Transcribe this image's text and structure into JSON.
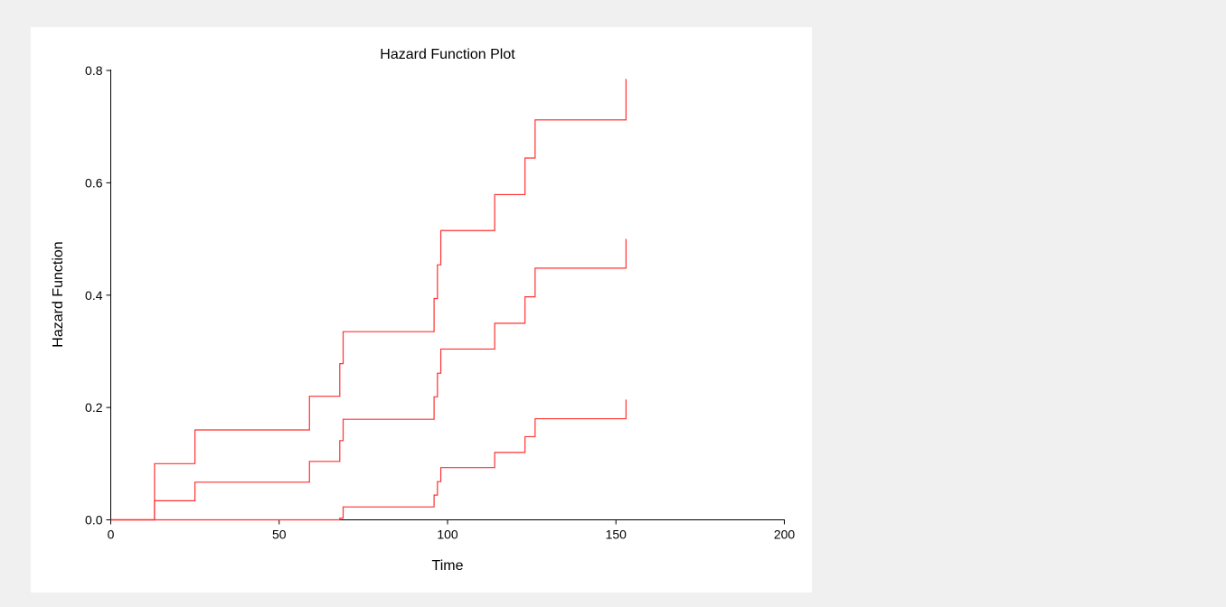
{
  "chart_data": {
    "type": "line",
    "step": true,
    "title": "Hazard Function Plot",
    "xlabel": "Time",
    "ylabel": "Hazard Function",
    "xlim": [
      0,
      200
    ],
    "ylim": [
      0,
      0.8
    ],
    "xticks": [
      0,
      50,
      100,
      150,
      200
    ],
    "yticks": [
      0.0,
      0.2,
      0.4,
      0.6,
      0.8
    ],
    "xtick_labels": [
      "0",
      "50",
      "100",
      "150",
      "200"
    ],
    "ytick_labels": [
      "0.0",
      "0.2",
      "0.4",
      "0.6",
      "0.8"
    ],
    "grid": false,
    "legend": "none",
    "line_color": "#ff3030",
    "series": [
      {
        "x": [
          0,
          13,
          13,
          25,
          25,
          59,
          59,
          68,
          68,
          69,
          69,
          96,
          96,
          97,
          97,
          98,
          98,
          114,
          114,
          123,
          123,
          126,
          126,
          153,
          153
        ],
        "y": [
          0,
          0,
          0.1,
          0.1,
          0.16,
          0.16,
          0.22,
          0.22,
          0.278,
          0.278,
          0.335,
          0.335,
          0.394,
          0.394,
          0.454,
          0.454,
          0.515,
          0.515,
          0.579,
          0.579,
          0.644,
          0.644,
          0.712,
          0.712,
          0.785
        ]
      },
      {
        "x": [
          0,
          13,
          13,
          25,
          25,
          59,
          59,
          68,
          68,
          69,
          69,
          96,
          96,
          97,
          97,
          98,
          98,
          114,
          114,
          123,
          123,
          126,
          126,
          153,
          153
        ],
        "y": [
          0,
          0,
          0.034,
          0.034,
          0.067,
          0.067,
          0.104,
          0.104,
          0.141,
          0.141,
          0.179,
          0.179,
          0.219,
          0.219,
          0.261,
          0.261,
          0.304,
          0.304,
          0.35,
          0.35,
          0.397,
          0.397,
          0.448,
          0.448,
          0.5
        ]
      },
      {
        "x": [
          0,
          68,
          68,
          69,
          69,
          96,
          96,
          97,
          97,
          98,
          98,
          114,
          114,
          123,
          123,
          126,
          126,
          153,
          153
        ],
        "y": [
          0,
          0,
          0.003,
          0.003,
          0.023,
          0.023,
          0.044,
          0.044,
          0.068,
          0.068,
          0.093,
          0.093,
          0.12,
          0.12,
          0.148,
          0.148,
          0.18,
          0.18,
          0.214
        ]
      }
    ]
  }
}
